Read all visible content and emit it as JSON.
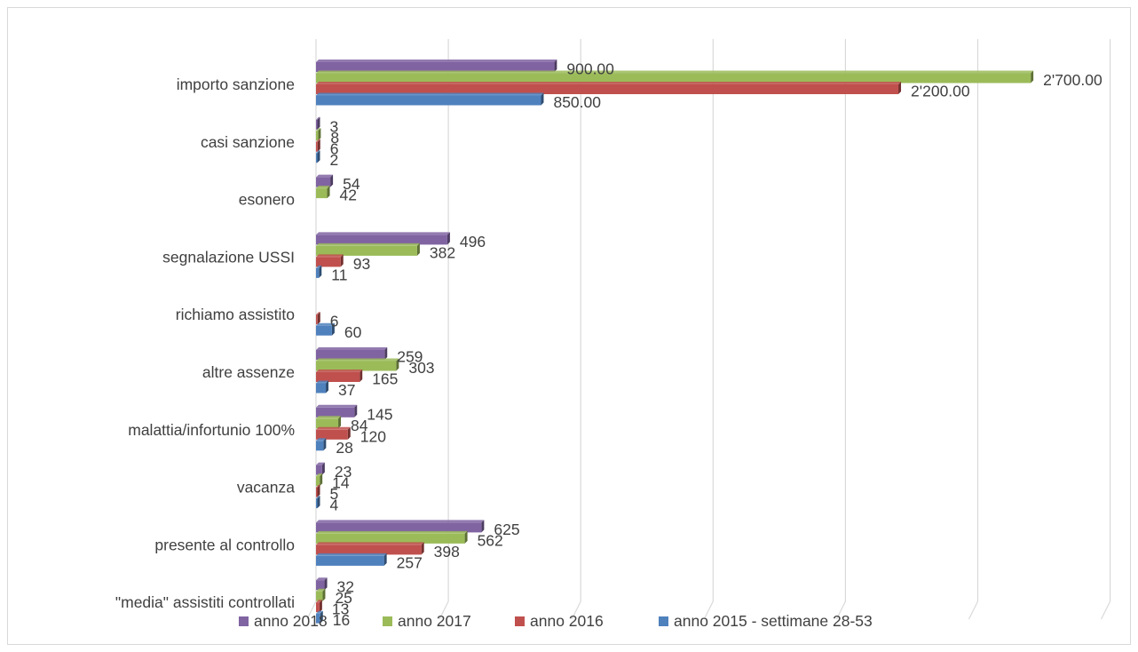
{
  "chart_data": {
    "type": "bar",
    "orientation": "horizontal",
    "style": "3d-clustered",
    "grid": true,
    "legend_position": "bottom",
    "categories": [
      "importo sanzione",
      "casi sanzione",
      "esonero",
      "segnalazione USSI",
      "richiamo assistito",
      "altre assenze",
      "malattia/infortunio 100%",
      "vacanza",
      "presente al controllo",
      "\"media\" assistiti controllati"
    ],
    "series": [
      {
        "name": "anno 2018",
        "color": "#8064A2",
        "values": [
          900,
          3,
          54,
          496,
          null,
          259,
          145,
          23,
          625,
          32
        ],
        "labels": [
          "900.00",
          "3",
          "54",
          "496",
          "",
          "259",
          "145",
          "23",
          "625",
          "32"
        ]
      },
      {
        "name": "anno 2017",
        "color": "#9BBB59",
        "values": [
          2700,
          8,
          42,
          382,
          null,
          303,
          84,
          14,
          562,
          25
        ],
        "labels": [
          "2'700.00",
          "8",
          "42",
          "382",
          "",
          "303",
          "84",
          "14",
          "562",
          "25"
        ]
      },
      {
        "name": "anno 2016",
        "color": "#C0504D",
        "values": [
          2200,
          6,
          null,
          93,
          6,
          165,
          120,
          5,
          398,
          13
        ],
        "labels": [
          "2'200.00",
          "6",
          "",
          "93",
          "6",
          "165",
          "120",
          "5",
          "398",
          "13"
        ]
      },
      {
        "name": "anno 2015 - settimane 28-53",
        "color": "#4F81BD",
        "values": [
          850,
          2,
          null,
          11,
          60,
          37,
          28,
          4,
          257,
          16
        ],
        "labels": [
          "850.00",
          "2",
          "",
          "11",
          "60",
          "37",
          "28",
          "4",
          "257",
          "16"
        ]
      }
    ],
    "xlim": [
      0,
      3000
    ]
  }
}
